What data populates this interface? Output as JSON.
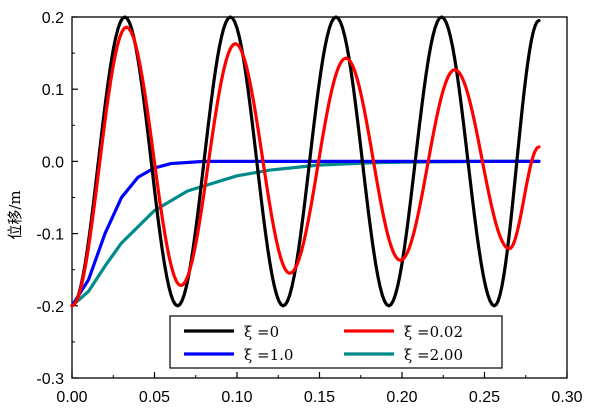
{
  "chart_data": {
    "type": "line",
    "title": "",
    "xlabel": "",
    "ylabel": "位移/m",
    "xlim": [
      0.0,
      0.3
    ],
    "ylim": [
      -0.3,
      0.2
    ],
    "xticks": [
      "0.00",
      "0.05",
      "0.10",
      "0.15",
      "0.20",
      "0.25",
      "0.30"
    ],
    "yticks": [
      "-0.3",
      "-0.2",
      "-0.1",
      "0.0",
      "0.1",
      "0.2"
    ],
    "xtick_values": [
      0.0,
      0.05,
      0.1,
      0.15,
      0.2,
      0.25,
      0.3
    ],
    "ytick_values": [
      -0.3,
      -0.2,
      -0.1,
      0.0,
      0.1,
      0.2
    ],
    "grid": false,
    "legend_position": "bottom-center",
    "series": [
      {
        "name": "ξ =0",
        "color": "#000000",
        "x": [
          0.0,
          0.032,
          0.064,
          0.096,
          0.128,
          0.16,
          0.192,
          0.224,
          0.256,
          0.283
        ],
        "y": [
          -0.2,
          0.2,
          -0.2,
          0.2,
          -0.2,
          0.2,
          -0.2,
          0.2,
          -0.2,
          0.195
        ]
      },
      {
        "name": "ξ =0.02",
        "color": "#ff0000",
        "x": [
          0.0,
          0.033,
          0.066,
          0.099,
          0.132,
          0.166,
          0.199,
          0.232,
          0.265,
          0.283
        ],
        "y": [
          -0.2,
          0.186,
          -0.172,
          0.163,
          -0.155,
          0.143,
          -0.137,
          0.127,
          -0.121,
          0.02
        ]
      },
      {
        "name": "ξ =1.0",
        "color": "#0000ff",
        "x": [
          0.0,
          0.01,
          0.02,
          0.03,
          0.04,
          0.05,
          0.06,
          0.08,
          0.1,
          0.15,
          0.2,
          0.25,
          0.283
        ],
        "y": [
          -0.2,
          -0.164,
          -0.1,
          -0.05,
          -0.022,
          -0.009,
          -0.003,
          0.0,
          0.0,
          0.0,
          0.0,
          0.0,
          0.0
        ]
      },
      {
        "name": "ξ =2.00",
        "color": "#008b8b",
        "x": [
          0.0,
          0.01,
          0.02,
          0.03,
          0.05,
          0.07,
          0.1,
          0.12,
          0.15,
          0.18,
          0.2,
          0.25,
          0.283
        ],
        "y": [
          -0.2,
          -0.18,
          -0.145,
          -0.113,
          -0.068,
          -0.041,
          -0.02,
          -0.012,
          -0.005,
          -0.002,
          -0.001,
          0.0,
          0.0
        ]
      }
    ]
  }
}
